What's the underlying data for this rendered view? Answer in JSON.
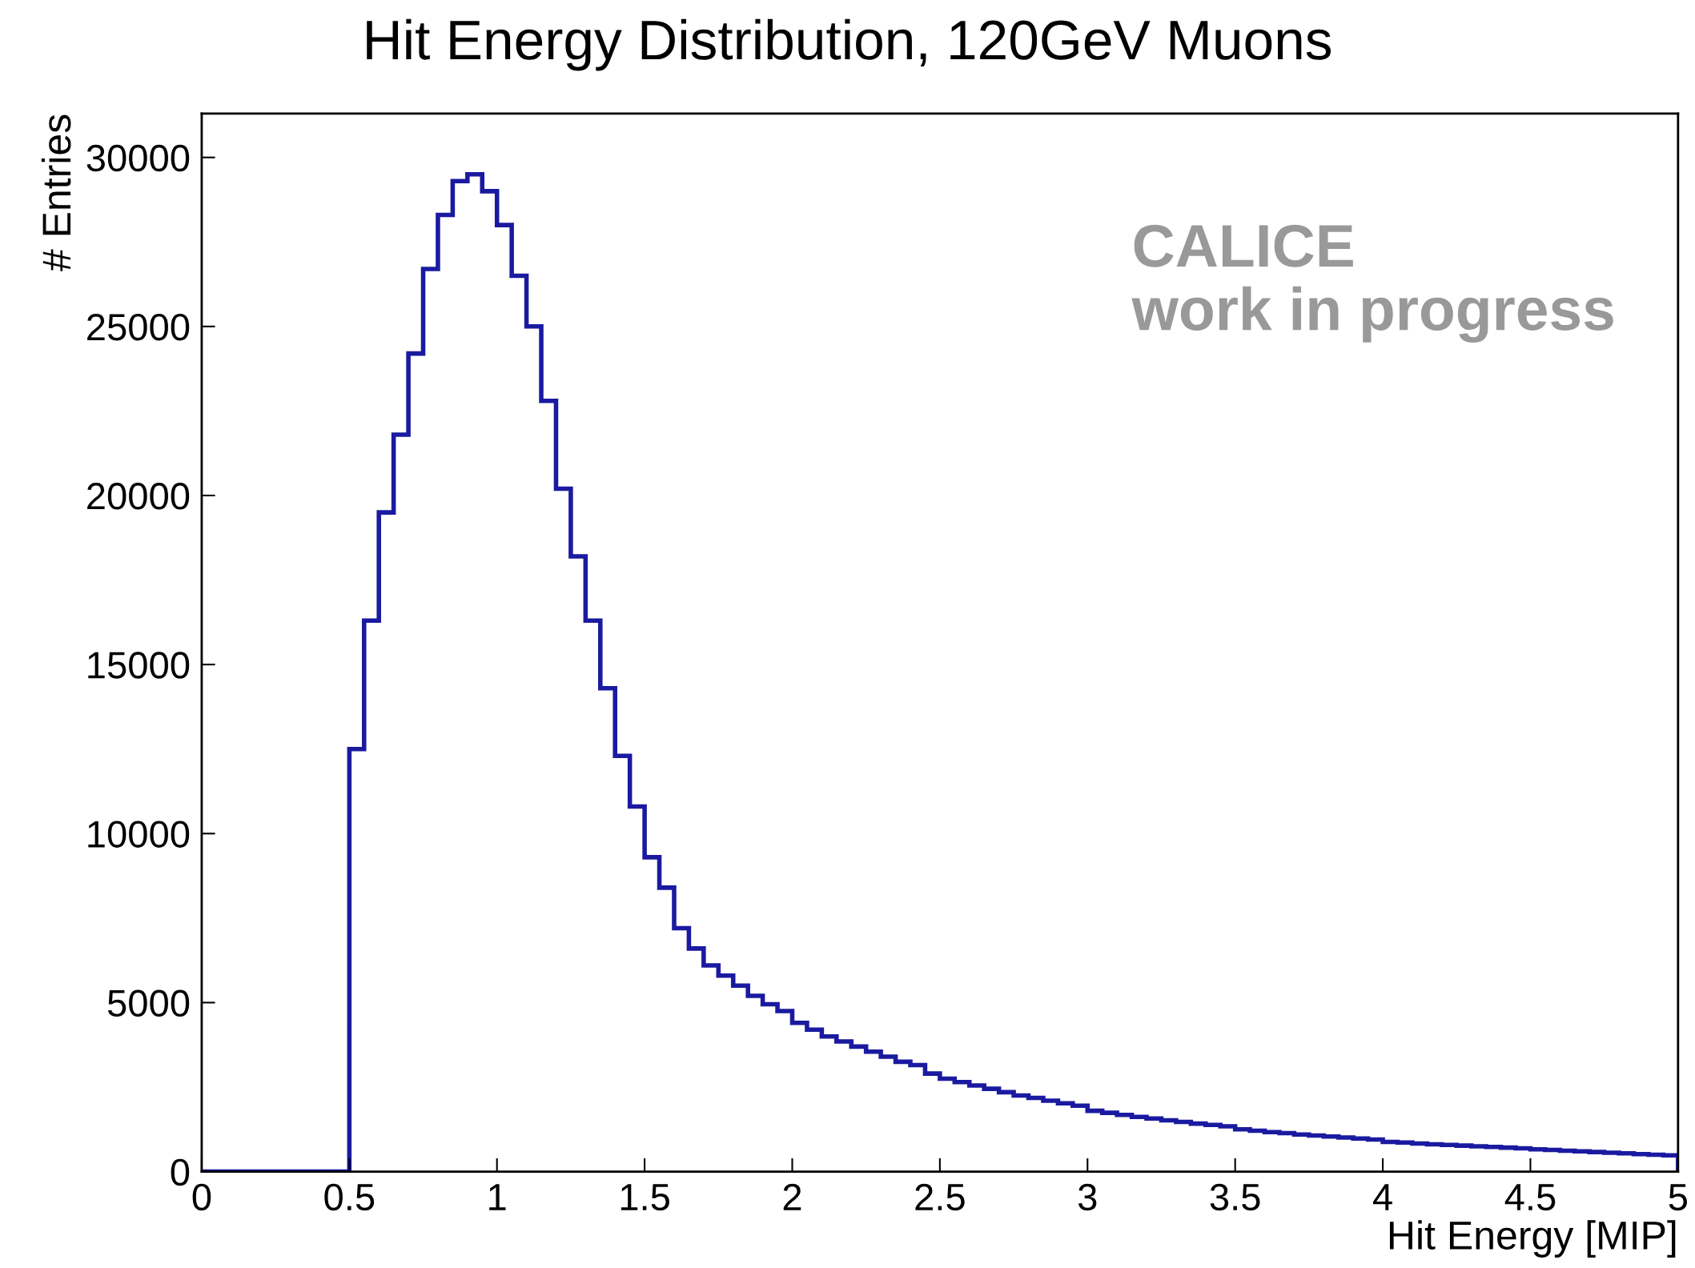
{
  "chart_data": {
    "type": "histogram",
    "title": "Hit Energy Distribution, 120GeV Muons",
    "xlabel": "Hit Energy [MIP]",
    "ylabel": "# Entries",
    "annotations": [
      "CALICE",
      "work in progress"
    ],
    "color": "#1a1aa0",
    "bins": [
      0,
      0.5,
      0.55,
      0.6,
      0.65,
      0.7,
      0.75,
      0.8,
      0.85,
      0.9,
      0.95,
      1.0,
      1.05,
      1.1,
      1.15,
      1.2,
      1.25,
      1.3,
      1.35,
      1.4,
      1.45,
      1.5,
      1.55,
      1.6,
      1.65,
      1.7,
      1.75,
      1.8,
      1.85,
      1.9,
      1.95,
      2.0,
      2.05,
      2.1,
      2.15,
      2.2,
      2.25,
      2.3,
      2.35,
      2.4,
      2.45,
      2.5,
      2.55,
      2.6,
      2.65,
      2.7,
      2.75,
      2.8,
      2.85,
      2.9,
      2.95,
      3.0,
      3.05,
      3.1,
      3.15,
      3.2,
      3.25,
      3.3,
      3.35,
      3.4,
      3.45,
      3.5,
      3.55,
      3.6,
      3.65,
      3.7,
      3.75,
      3.8,
      3.85,
      3.9,
      3.95,
      4.0,
      4.05,
      4.1,
      4.15,
      4.2,
      4.25,
      4.3,
      4.35,
      4.4,
      4.45,
      4.5,
      4.55,
      4.6,
      4.65,
      4.7,
      4.75,
      4.8,
      4.85,
      4.9,
      4.95,
      5.0
    ],
    "values": [
      0,
      12500,
      16300,
      19500,
      21800,
      24200,
      26700,
      28300,
      29300,
      29500,
      29000,
      28000,
      26500,
      25000,
      22800,
      20200,
      18200,
      16300,
      14300,
      12300,
      10800,
      9300,
      8400,
      7200,
      6600,
      6100,
      5800,
      5500,
      5200,
      4950,
      4750,
      4400,
      4200,
      4000,
      3850,
      3700,
      3550,
      3400,
      3250,
      3150,
      2900,
      2750,
      2650,
      2550,
      2450,
      2350,
      2250,
      2180,
      2100,
      2020,
      1950,
      1800,
      1740,
      1680,
      1620,
      1570,
      1520,
      1470,
      1420,
      1380,
      1340,
      1250,
      1210,
      1170,
      1140,
      1100,
      1070,
      1040,
      1010,
      980,
      950,
      880,
      860,
      830,
      810,
      790,
      770,
      750,
      730,
      710,
      690,
      660,
      640,
      620,
      600,
      580,
      560,
      540,
      520,
      500,
      480
    ],
    "xlim": [
      0,
      5
    ],
    "ylim": [
      0,
      31300
    ],
    "xticks": [
      0,
      0.5,
      1,
      1.5,
      2,
      2.5,
      3,
      3.5,
      4,
      4.5,
      5
    ],
    "yticks": [
      0,
      5000,
      10000,
      15000,
      20000,
      25000,
      30000
    ],
    "grid": false,
    "legend": false
  }
}
